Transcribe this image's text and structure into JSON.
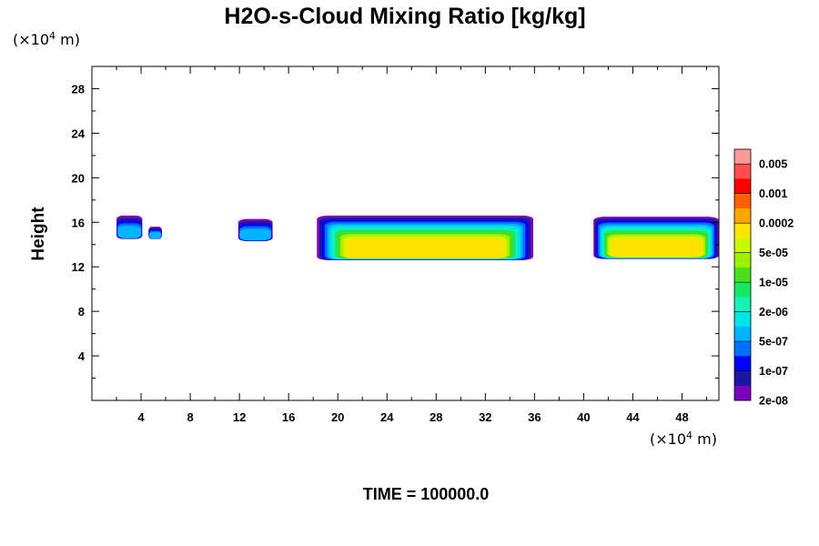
{
  "chart_data": {
    "type": "heatmap",
    "title": "H2O-s-Cloud Mixing Ratio [kg/kg]",
    "ylabel": "Height",
    "xlabel": "",
    "x_unit": {
      "prefix": "(×10",
      "exp": "4",
      "suffix": " m)"
    },
    "y_unit": {
      "prefix": "(×10",
      "exp": "4",
      "suffix": " m)"
    },
    "xlim": [
      0,
      51
    ],
    "ylim": [
      0,
      30
    ],
    "x_ticks": [
      4,
      8,
      12,
      16,
      20,
      24,
      28,
      32,
      36,
      40,
      44,
      48
    ],
    "y_ticks": [
      4,
      8,
      12,
      16,
      20,
      24,
      28
    ],
    "time_label": "TIME = 100000.0",
    "colorbar": {
      "colors": [
        "#ff9999",
        "#ff4f4f",
        "#ff0000",
        "#ff6000",
        "#ffa500",
        "#ffe400",
        "#ccf700",
        "#9cf000",
        "#4bdc1c",
        "#16e864",
        "#17f0b8",
        "#00e6e6",
        "#00b4ff",
        "#0070ff",
        "#0000ff",
        "#1818a0",
        "#7d00c0"
      ],
      "labels": [
        "0.005",
        "0.001",
        "0.0002",
        "5e-05",
        "1e-05",
        "2e-06",
        "5e-07",
        "1e-07",
        "2e-08"
      ]
    },
    "cloud_bands": [
      {
        "x0": 2.0,
        "x1": 4.1,
        "top": 16.6,
        "base": 14.5
      },
      {
        "x0": 4.6,
        "x1": 5.7,
        "top": 15.6,
        "base": 14.5
      },
      {
        "x0": 11.9,
        "x1": 14.7,
        "top": 16.3,
        "base": 14.3
      },
      {
        "x0": 18.3,
        "x1": 35.9,
        "top": 16.6,
        "base": 12.6
      },
      {
        "x0": 40.8,
        "x1": 51.0,
        "top": 16.5,
        "base": 12.7
      }
    ]
  }
}
